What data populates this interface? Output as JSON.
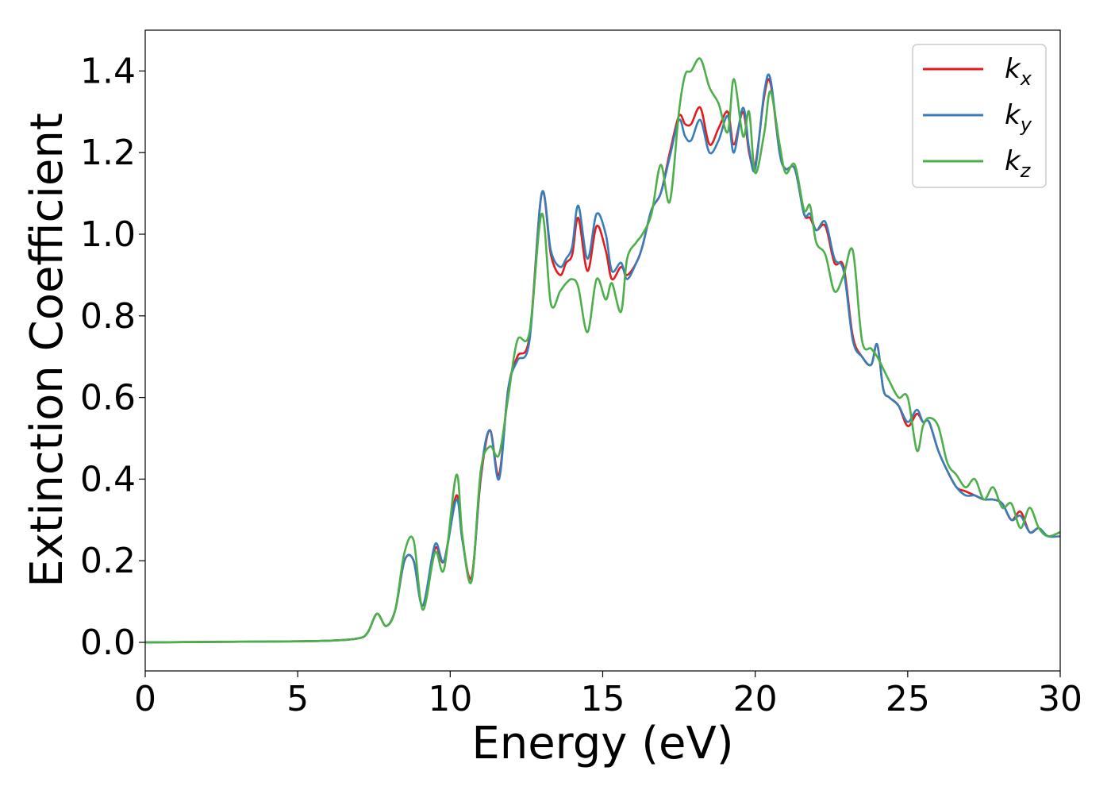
{
  "colors": {
    "kx": "#e41a1c",
    "ky": "#377eb8",
    "kz": "#4daf4a"
  },
  "chart_data": {
    "type": "line",
    "title": "",
    "xlabel": "Energy (eV)",
    "ylabel": "Extinction Coefficient",
    "xlim": [
      0,
      30
    ],
    "ylim": [
      -0.07,
      1.5
    ],
    "xticks": [
      0,
      5,
      10,
      15,
      20,
      25,
      30
    ],
    "yticks": [
      0.0,
      0.2,
      0.4,
      0.6,
      0.8,
      1.0,
      1.2,
      1.4
    ],
    "xtick_labels": [
      "0",
      "5",
      "10",
      "15",
      "20",
      "25",
      "30"
    ],
    "ytick_labels": [
      "0.0",
      "0.2",
      "0.4",
      "0.6",
      "0.8",
      "1.0",
      "1.2",
      "1.4"
    ],
    "grid": false,
    "legend_position": "top-right",
    "series": [
      {
        "name": "k_x",
        "legend_main": "k",
        "legend_sub": "x",
        "color": "#e41a1c",
        "x": [
          0,
          2,
          4,
          6,
          7,
          7.3,
          7.6,
          7.9,
          8.2,
          8.5,
          8.8,
          9.1,
          9.5,
          9.8,
          10.2,
          10.4,
          10.7,
          11.0,
          11.3,
          11.6,
          11.9,
          12.2,
          12.6,
          13.0,
          13.3,
          13.6,
          13.8,
          14.0,
          14.2,
          14.5,
          14.8,
          15.1,
          15.3,
          15.6,
          15.8,
          16.1,
          16.3,
          16.6,
          16.9,
          17.2,
          17.5,
          17.7,
          17.9,
          18.2,
          18.5,
          18.8,
          19.1,
          19.3,
          19.6,
          19.8,
          20.0,
          20.3,
          20.5,
          20.8,
          21.0,
          21.3,
          21.6,
          21.8,
          22.0,
          22.3,
          22.6,
          22.9,
          23.2,
          23.5,
          23.8,
          24.0,
          24.2,
          24.4,
          24.7,
          25.0,
          25.3,
          25.5,
          25.7,
          26.0,
          26.3,
          26.6,
          26.9,
          27.2,
          27.5,
          27.8,
          28.1,
          28.4,
          28.7,
          29.0,
          29.3,
          29.6,
          30.0
        ],
        "y": [
          0,
          0.001,
          0.002,
          0.004,
          0.01,
          0.025,
          0.07,
          0.04,
          0.08,
          0.2,
          0.2,
          0.09,
          0.23,
          0.2,
          0.36,
          0.25,
          0.16,
          0.4,
          0.52,
          0.41,
          0.62,
          0.7,
          0.75,
          1.1,
          0.95,
          0.9,
          0.93,
          0.95,
          1.04,
          0.91,
          1.02,
          0.96,
          0.89,
          0.92,
          0.9,
          0.93,
          0.97,
          1.06,
          1.1,
          1.2,
          1.29,
          1.27,
          1.27,
          1.31,
          1.22,
          1.26,
          1.3,
          1.22,
          1.3,
          1.2,
          1.17,
          1.34,
          1.37,
          1.2,
          1.16,
          1.16,
          1.05,
          1.04,
          1.01,
          1.02,
          0.93,
          0.92,
          0.75,
          0.7,
          0.68,
          0.73,
          0.62,
          0.6,
          0.58,
          0.53,
          0.56,
          0.54,
          0.54,
          0.47,
          0.42,
          0.38,
          0.37,
          0.36,
          0.35,
          0.35,
          0.34,
          0.3,
          0.32,
          0.27,
          0.28,
          0.26,
          0.27
        ]
      },
      {
        "name": "k_y",
        "legend_main": "k",
        "legend_sub": "y",
        "color": "#377eb8",
        "x": [
          0,
          2,
          4,
          6,
          7,
          7.3,
          7.6,
          7.9,
          8.2,
          8.5,
          8.8,
          9.1,
          9.5,
          9.8,
          10.2,
          10.4,
          10.7,
          11.0,
          11.3,
          11.6,
          11.9,
          12.2,
          12.6,
          13.0,
          13.3,
          13.6,
          13.8,
          14.0,
          14.2,
          14.5,
          14.8,
          15.1,
          15.3,
          15.6,
          15.8,
          16.1,
          16.3,
          16.6,
          16.9,
          17.2,
          17.5,
          17.7,
          17.9,
          18.2,
          18.5,
          18.8,
          19.1,
          19.3,
          19.6,
          19.8,
          20.0,
          20.3,
          20.5,
          20.8,
          21.0,
          21.3,
          21.6,
          21.8,
          22.0,
          22.3,
          22.6,
          22.9,
          23.2,
          23.5,
          23.8,
          24.0,
          24.2,
          24.4,
          24.7,
          25.0,
          25.3,
          25.5,
          25.7,
          26.0,
          26.3,
          26.6,
          26.9,
          27.2,
          27.5,
          27.8,
          28.1,
          28.4,
          28.7,
          29.0,
          29.3,
          29.6,
          30.0
        ],
        "y": [
          0,
          0.001,
          0.002,
          0.004,
          0.01,
          0.025,
          0.07,
          0.04,
          0.08,
          0.2,
          0.2,
          0.09,
          0.24,
          0.2,
          0.35,
          0.25,
          0.15,
          0.41,
          0.52,
          0.4,
          0.62,
          0.69,
          0.74,
          1.1,
          0.96,
          0.92,
          0.94,
          0.97,
          1.07,
          0.94,
          1.05,
          1.0,
          0.91,
          0.93,
          0.89,
          0.93,
          0.97,
          1.06,
          1.1,
          1.19,
          1.28,
          1.24,
          1.23,
          1.28,
          1.2,
          1.23,
          1.29,
          1.2,
          1.31,
          1.21,
          1.16,
          1.35,
          1.38,
          1.2,
          1.16,
          1.16,
          1.05,
          1.05,
          1.01,
          1.03,
          0.94,
          0.91,
          0.74,
          0.7,
          0.68,
          0.73,
          0.62,
          0.6,
          0.58,
          0.54,
          0.57,
          0.54,
          0.54,
          0.47,
          0.42,
          0.38,
          0.36,
          0.36,
          0.35,
          0.35,
          0.34,
          0.3,
          0.31,
          0.27,
          0.28,
          0.26,
          0.26
        ]
      },
      {
        "name": "k_z",
        "legend_main": "k",
        "legend_sub": "z",
        "color": "#4daf4a",
        "x": [
          0,
          2,
          4,
          6,
          7,
          7.3,
          7.6,
          7.9,
          8.2,
          8.5,
          8.8,
          9.1,
          9.5,
          9.8,
          10.2,
          10.4,
          10.7,
          11.0,
          11.3,
          11.6,
          11.9,
          12.2,
          12.6,
          13.0,
          13.3,
          13.6,
          13.8,
          14.0,
          14.2,
          14.5,
          14.8,
          15.1,
          15.3,
          15.6,
          15.8,
          16.1,
          16.3,
          16.6,
          16.9,
          17.2,
          17.5,
          17.7,
          17.9,
          18.2,
          18.5,
          18.8,
          19.1,
          19.3,
          19.6,
          19.8,
          20.0,
          20.3,
          20.5,
          20.8,
          21.0,
          21.3,
          21.6,
          21.8,
          22.0,
          22.3,
          22.6,
          22.9,
          23.2,
          23.5,
          23.8,
          24.0,
          24.2,
          24.4,
          24.7,
          25.0,
          25.3,
          25.5,
          25.7,
          26.0,
          26.3,
          26.6,
          26.9,
          27.2,
          27.5,
          27.8,
          28.1,
          28.4,
          28.7,
          29.0,
          29.3,
          29.6,
          30.0
        ],
        "y": [
          0,
          0.001,
          0.002,
          0.004,
          0.01,
          0.025,
          0.07,
          0.04,
          0.08,
          0.22,
          0.25,
          0.08,
          0.22,
          0.18,
          0.41,
          0.26,
          0.15,
          0.42,
          0.48,
          0.46,
          0.6,
          0.74,
          0.76,
          1.05,
          0.83,
          0.86,
          0.88,
          0.89,
          0.87,
          0.76,
          0.89,
          0.84,
          0.88,
          0.81,
          0.94,
          0.98,
          1.0,
          1.05,
          1.17,
          1.08,
          1.3,
          1.39,
          1.4,
          1.43,
          1.36,
          1.32,
          1.25,
          1.38,
          1.24,
          1.3,
          1.15,
          1.25,
          1.35,
          1.22,
          1.15,
          1.17,
          1.06,
          1.07,
          0.98,
          0.95,
          0.86,
          0.9,
          0.96,
          0.74,
          0.72,
          0.7,
          0.67,
          0.64,
          0.6,
          0.6,
          0.47,
          0.53,
          0.55,
          0.53,
          0.44,
          0.41,
          0.38,
          0.4,
          0.35,
          0.38,
          0.33,
          0.34,
          0.28,
          0.33,
          0.28,
          0.26,
          0.27
        ]
      }
    ]
  }
}
